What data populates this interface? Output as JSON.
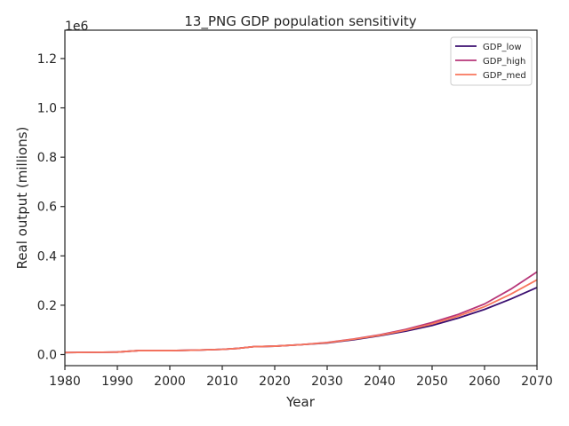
{
  "chart_data": {
    "type": "line",
    "title": "13_PNG GDP population sensitivity",
    "xlabel": "Year",
    "ylabel": "Real output (millions)",
    "y_offset_text": "1e6",
    "xlim": [
      1980,
      2070
    ],
    "ylim": [
      -45000,
      1315000
    ],
    "x_ticks": [
      1980,
      1990,
      2000,
      2010,
      2020,
      2030,
      2040,
      2050,
      2060,
      2070
    ],
    "y_ticks": [
      0,
      200000,
      400000,
      600000,
      800000,
      1000000,
      1200000
    ],
    "y_tick_labels": [
      "0.0",
      "0.2",
      "0.4",
      "0.6",
      "0.8",
      "1.0",
      "1.2"
    ],
    "grid": false,
    "legend_position": "top-right",
    "x": [
      1980,
      1985,
      1990,
      1994,
      2000,
      2005,
      2010,
      2013,
      2016,
      2020,
      2025,
      2030,
      2035,
      2040,
      2045,
      2050,
      2055,
      2060,
      2065,
      2070
    ],
    "series": [
      {
        "name": "GDP_low",
        "color": "#3b0f70",
        "values": [
          8000,
          9000,
          10000,
          16000,
          16000,
          18000,
          21000,
          25000,
          32000,
          34000,
          40000,
          47000,
          60000,
          76000,
          95000,
          118000,
          148000,
          183000,
          225000,
          272000
        ]
      },
      {
        "name": "GDP_high",
        "color": "#b73779",
        "values": [
          8000,
          9000,
          10000,
          16000,
          16000,
          18000,
          21000,
          25000,
          32000,
          34000,
          40000,
          49000,
          63000,
          80000,
          102000,
          130000,
          163000,
          205000,
          265000,
          335000
        ]
      },
      {
        "name": "GDP_med",
        "color": "#f8765c",
        "values": [
          8000,
          9000,
          10000,
          16000,
          16000,
          18000,
          21000,
          25000,
          32000,
          34000,
          40000,
          48000,
          62000,
          78000,
          99000,
          124000,
          156000,
          194000,
          245000,
          303000
        ]
      }
    ]
  }
}
